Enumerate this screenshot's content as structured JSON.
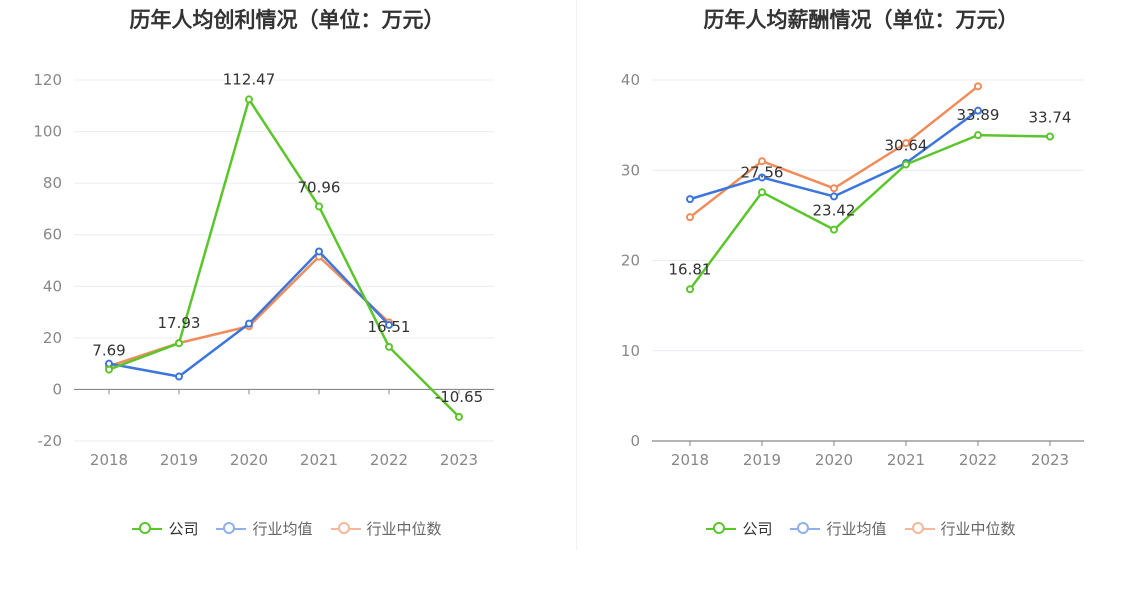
{
  "colors": {
    "company": "#5bc52c",
    "industry_avg": "#3c76dc",
    "industry_median": "#f08c5a",
    "grid": "#e9ecf3",
    "axis": "#888888",
    "tick_text": "#888888",
    "label_text": "#333333"
  },
  "legend_items": [
    {
      "label": "公司",
      "color": "#5bc52c"
    },
    {
      "label": "行业均值",
      "color": "#3c76dc"
    },
    {
      "label": "行业中位数",
      "color": "#f08c5a"
    }
  ],
  "chart_data": [
    {
      "type": "line",
      "title": "历年人均创利情况（单位：万元）",
      "categories": [
        "2018",
        "2019",
        "2020",
        "2021",
        "2022",
        "2023"
      ],
      "ylim": [
        -20,
        120
      ],
      "yticks": [
        -20,
        0,
        20,
        40,
        60,
        80,
        100,
        120
      ],
      "grid": true,
      "legend": "bottom",
      "series": [
        {
          "name": "公司",
          "values": [
            7.69,
            17.93,
            112.47,
            70.96,
            16.51,
            -10.65
          ],
          "labels": [
            "7.69",
            "17.93",
            "112.47",
            "70.96",
            "16.51",
            "-10.65"
          ]
        },
        {
          "name": "行业均值",
          "values": [
            10,
            5,
            25.5,
            53.5,
            25,
            null
          ]
        },
        {
          "name": "行业中位数",
          "values": [
            9,
            18,
            24.5,
            51.5,
            26,
            null
          ]
        }
      ]
    },
    {
      "type": "line",
      "title": "历年人均薪酬情况（单位：万元）",
      "categories": [
        "2018",
        "2019",
        "2020",
        "2021",
        "2022",
        "2023"
      ],
      "ylim": [
        0,
        40
      ],
      "yticks": [
        0,
        10,
        20,
        30,
        40
      ],
      "grid": true,
      "legend": "bottom",
      "series": [
        {
          "name": "公司",
          "values": [
            16.81,
            27.56,
            23.42,
            30.64,
            33.89,
            33.74
          ],
          "labels": [
            "16.81",
            "27.56",
            "23.42",
            "30.64",
            "33.89",
            "33.74"
          ]
        },
        {
          "name": "行业均值",
          "values": [
            26.8,
            29.2,
            27.1,
            30.8,
            36.6,
            null
          ]
        },
        {
          "name": "行业中位数",
          "values": [
            24.8,
            31,
            28,
            33,
            39.3,
            null
          ]
        }
      ]
    }
  ]
}
